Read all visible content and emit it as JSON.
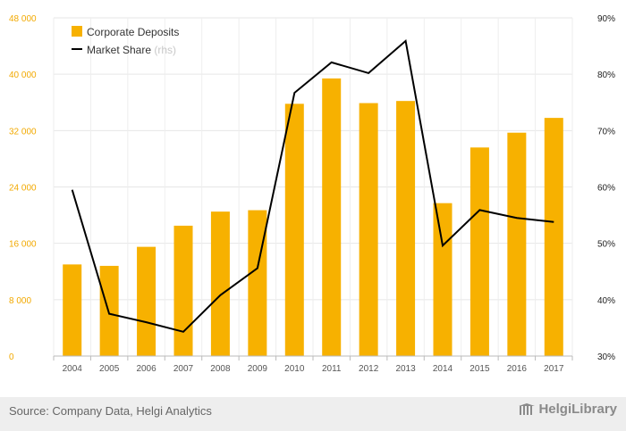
{
  "chart_data": {
    "type": "bar",
    "categories": [
      "2004",
      "2005",
      "2006",
      "2007",
      "2008",
      "2009",
      "2010",
      "2011",
      "2012",
      "2013",
      "2014",
      "2015",
      "2016",
      "2017"
    ],
    "series": [
      {
        "name": "Corporate Deposits",
        "type": "bar",
        "axis": "left",
        "color": "#f7b100",
        "values": [
          13000,
          12800,
          15500,
          18500,
          20500,
          20700,
          35800,
          39400,
          35900,
          36200,
          21700,
          29600,
          31700,
          33800
        ]
      },
      {
        "name": "Market Share",
        "note": "(rhs)",
        "type": "line",
        "axis": "right",
        "color": "#000000",
        "values": [
          59.5,
          37.5,
          36.0,
          34.3,
          40.8,
          45.6,
          76.7,
          82.1,
          80.2,
          85.9,
          49.6,
          55.9,
          54.5,
          53.8
        ]
      }
    ],
    "left_axis": {
      "min": 0,
      "max": 48000,
      "ticks": [
        "0",
        "8 000",
        "16 000",
        "24 000",
        "32 000",
        "40 000",
        "48 000"
      ],
      "color": "#f2a900"
    },
    "right_axis": {
      "min": 30,
      "max": 90,
      "ticks": [
        "30%",
        "40%",
        "50%",
        "60%",
        "70%",
        "80%",
        "90%"
      ]
    },
    "grid": true,
    "legend_position": "top-left"
  },
  "footer": {
    "source": "Source: Company Data, Helgi Analytics",
    "brand": "HelgiLibrary"
  }
}
